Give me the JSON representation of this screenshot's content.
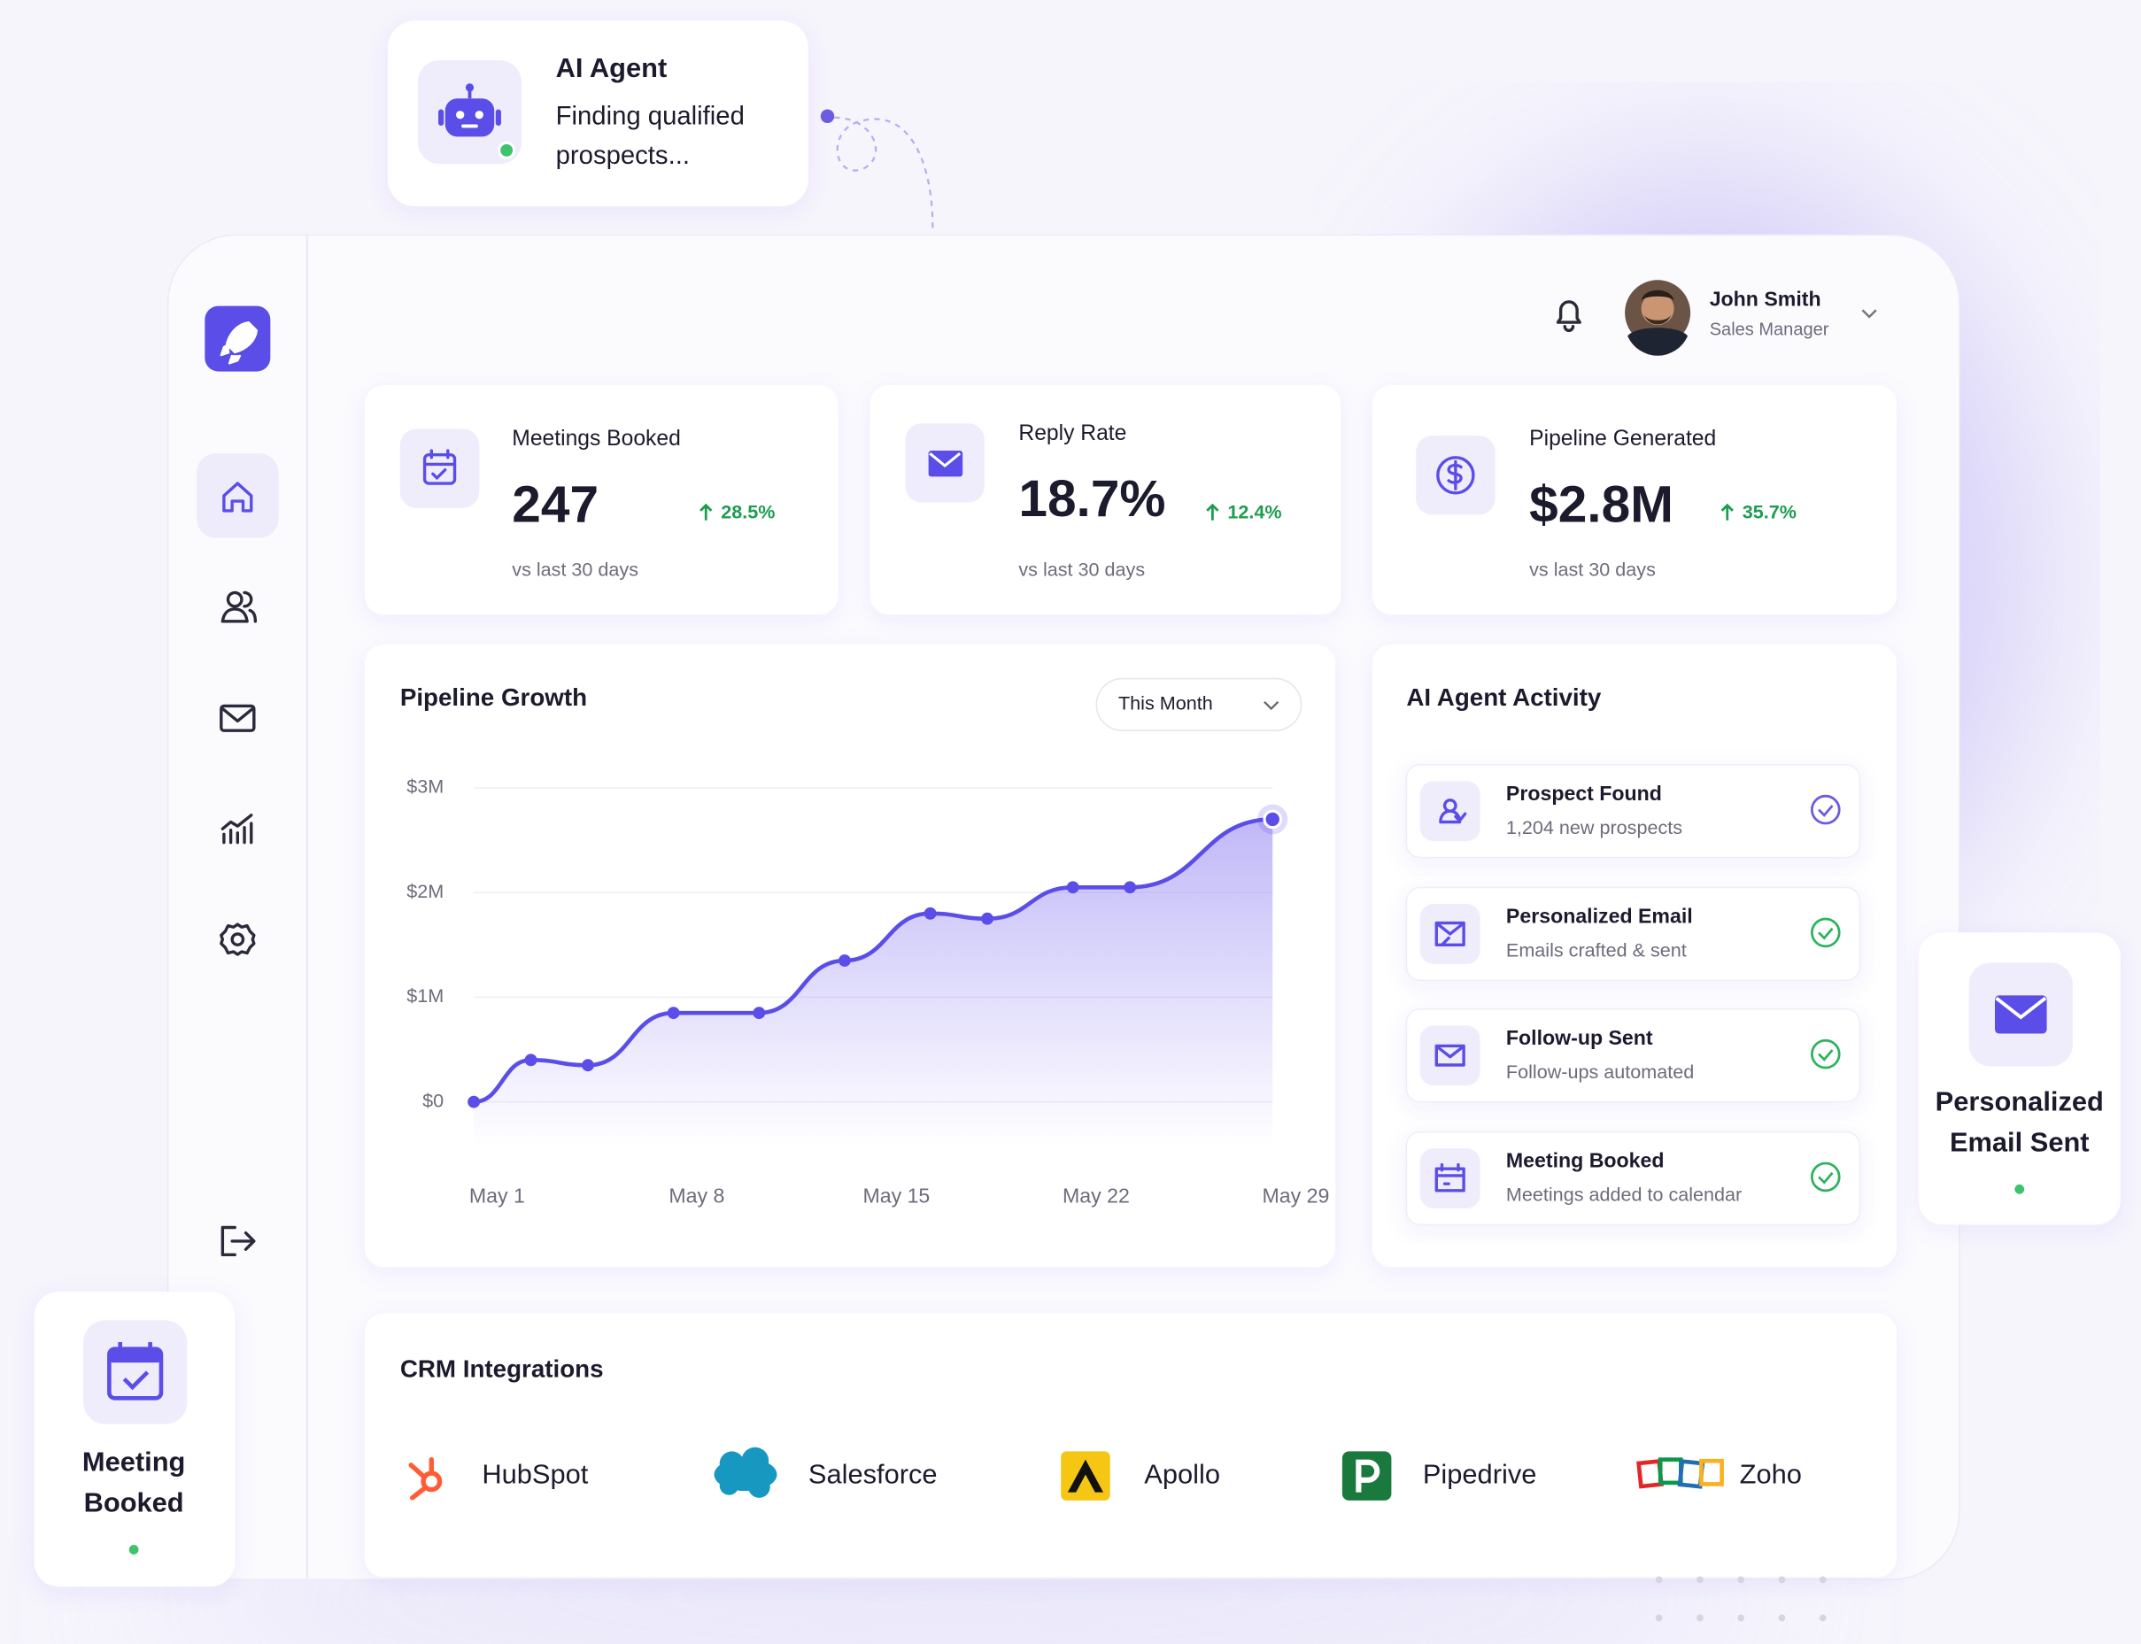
{
  "ai_agent_card": {
    "title": "AI Agent",
    "message_lines": [
      "Finding qualified",
      "prospects..."
    ]
  },
  "user": {
    "name": "John Smith",
    "role": "Sales Manager"
  },
  "kpis": [
    {
      "label": "Meetings Booked",
      "value": "247",
      "change": "28.5%",
      "note": "vs last 30 days"
    },
    {
      "label": "Reply Rate",
      "value": "18.7%",
      "change": "12.4%",
      "note": "vs last 30 days"
    },
    {
      "label": "Pipeline Generated",
      "value": "$2.8M",
      "change": "35.7%",
      "note": "vs last 30 days"
    }
  ],
  "chart_data": {
    "type": "area",
    "title": "Pipeline Growth",
    "color": "#5b4ee8",
    "x": [
      1,
      3,
      5,
      8,
      11,
      14,
      17,
      19,
      22,
      24,
      29
    ],
    "values": [
      0,
      0.4,
      0.35,
      0.85,
      0.85,
      1.35,
      1.8,
      1.75,
      2.05,
      2.05,
      2.7
    ],
    "xlim": [
      1,
      29
    ],
    "xticks": [
      {
        "value": 1,
        "label": "May 1"
      },
      {
        "value": 8,
        "label": "May 8"
      },
      {
        "value": 15,
        "label": "May 15"
      },
      {
        "value": 22,
        "label": "May 22"
      },
      {
        "value": 29,
        "label": "May 29"
      }
    ],
    "ylim": [
      0,
      3
    ],
    "yticks": [
      {
        "value": 0,
        "label": "$0"
      },
      {
        "value": 1,
        "label": "$1M"
      },
      {
        "value": 2,
        "label": "$2M"
      },
      {
        "value": 3,
        "label": "$3M"
      }
    ],
    "grid": true
  },
  "period_selector": "This Month",
  "activity": {
    "title": "AI Agent Activity",
    "items": [
      {
        "title": "Prospect Found",
        "subtitle": "1,204 new prospects"
      },
      {
        "title": "Personalized Email",
        "subtitle": "Emails crafted & sent"
      },
      {
        "title": "Follow-up Sent",
        "subtitle": "Follow-ups automated"
      },
      {
        "title": "Meeting Booked",
        "subtitle": "Meetings added to calendar"
      }
    ]
  },
  "email_card": {
    "lines": [
      "Personalized",
      "Email Sent"
    ]
  },
  "meeting_card": {
    "lines": [
      "Meeting",
      "Booked"
    ]
  },
  "crm": {
    "title": "CRM Integrations",
    "items": [
      "HubSpot",
      "Salesforce",
      "Apollo",
      "Pipedrive",
      "Zoho"
    ]
  }
}
